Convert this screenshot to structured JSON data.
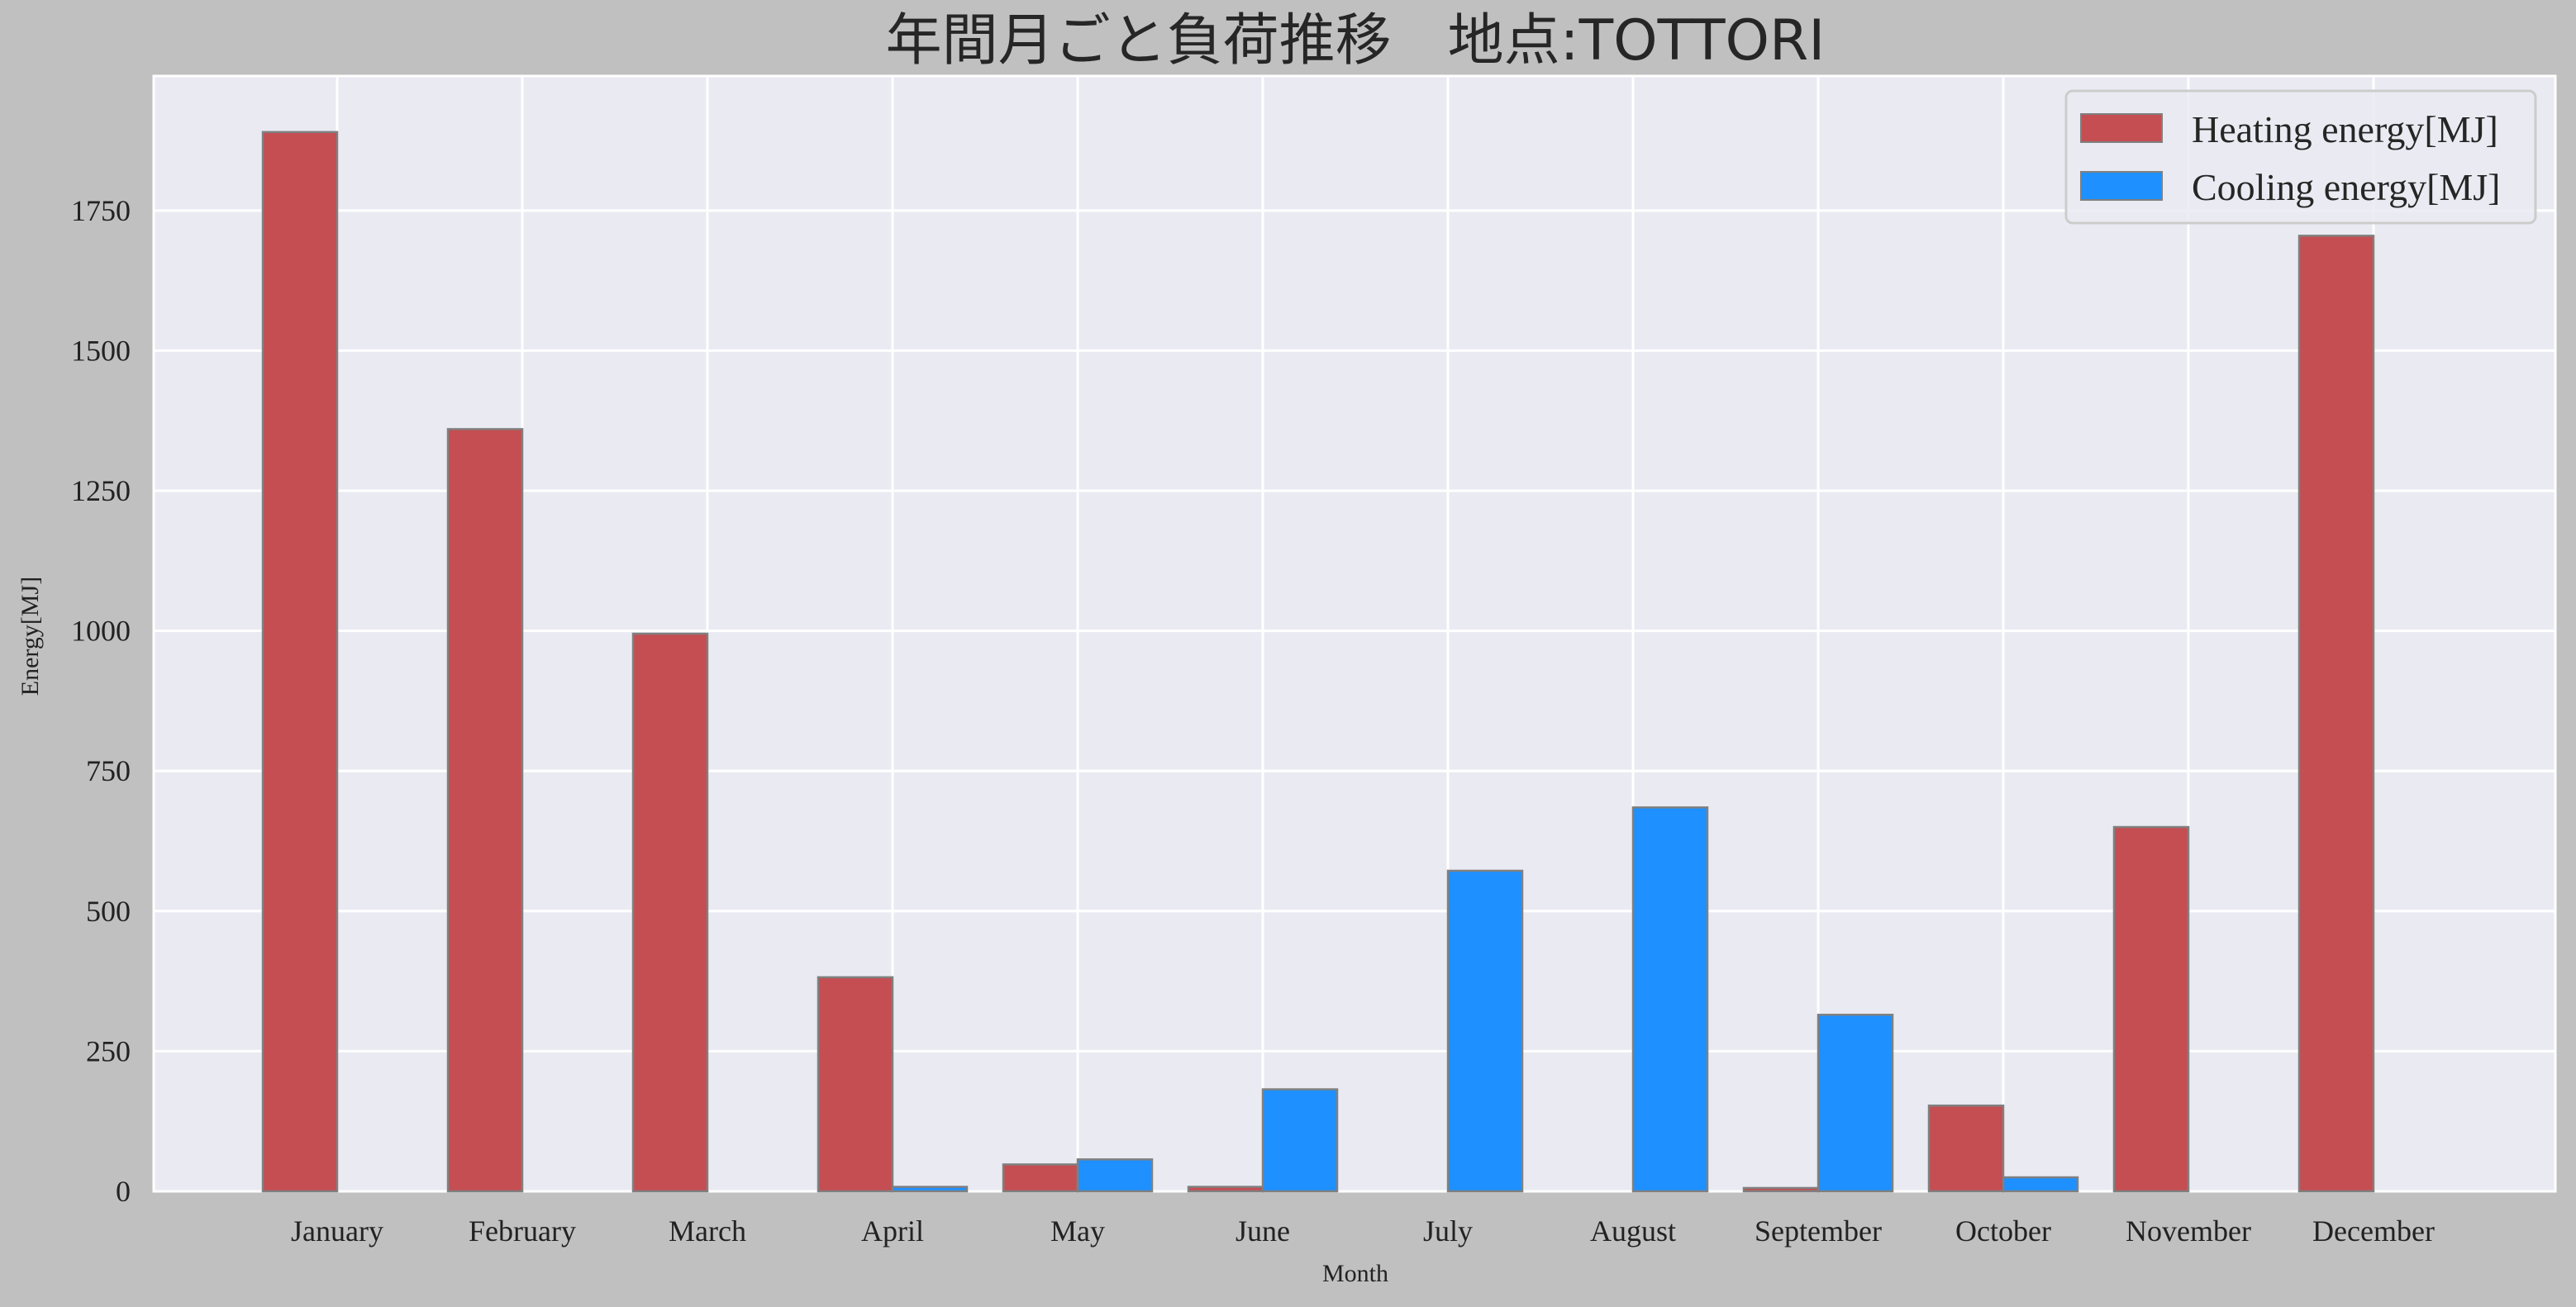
{
  "chart_data": {
    "type": "bar",
    "title": "年間月ごと負荷推移　地点:TOTTORI",
    "xlabel": "Month",
    "ylabel": "Energy[MJ]",
    "ylim": [
      0,
      1990
    ],
    "yticks": [
      0,
      250,
      500,
      750,
      1000,
      1250,
      1500,
      1750
    ],
    "grid": true,
    "legend_position": "top-right",
    "categories": [
      "January",
      "February",
      "March",
      "April",
      "May",
      "June",
      "July",
      "August",
      "September",
      "October",
      "November",
      "December"
    ],
    "series": [
      {
        "name": "Heating energy[MJ]",
        "color": "#c44e52",
        "values": [
          1890,
          1360,
          995,
          382,
          48,
          8,
          0,
          0,
          6,
          153,
          650,
          1705
        ]
      },
      {
        "name": "Cooling energy[MJ]",
        "color": "#1e90ff",
        "values": [
          0,
          0,
          0,
          8,
          57,
          182,
          572,
          685,
          315,
          25,
          0,
          0
        ]
      }
    ]
  },
  "colors": {
    "page_background": "#c0c0c0",
    "plot_background": "#eaeaf2",
    "grid": "#ffffff",
    "bar_edge": "#808080"
  }
}
